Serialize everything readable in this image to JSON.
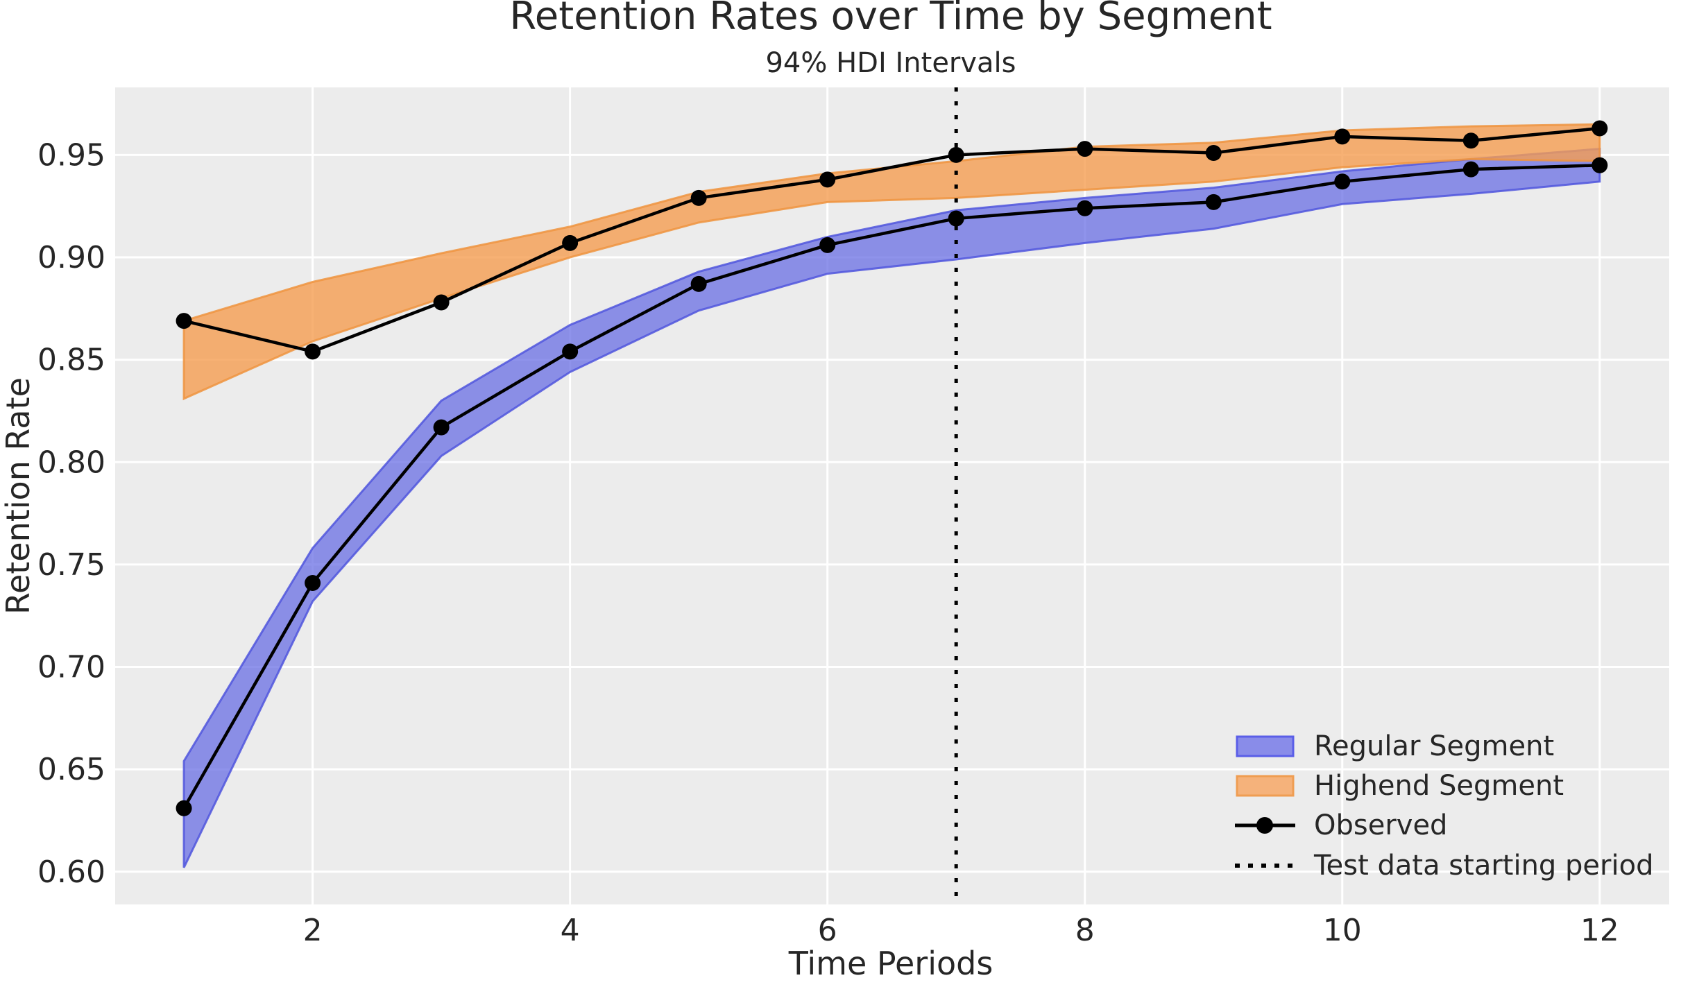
{
  "title": "Retention Rates over Time by Segment",
  "subtitle": "94% HDI Intervals",
  "chart_data": {
    "type": "line",
    "title": "Retention Rates over Time by Segment",
    "subtitle": "94% HDI Intervals",
    "xlabel": "Time Periods",
    "ylabel": "Retention Rate",
    "x": [
      1,
      2,
      3,
      4,
      5,
      6,
      7,
      8,
      9,
      10,
      11,
      12
    ],
    "xlim": [
      0.466,
      12.54
    ],
    "ylim": [
      0.584,
      0.983
    ],
    "grid": true,
    "legend_position": "lower right",
    "xticks": {
      "values": [
        2,
        4,
        6,
        8,
        10,
        12
      ],
      "labels": [
        "2",
        "4",
        "6",
        "8",
        "10",
        "12"
      ]
    },
    "yticks": {
      "values": [
        0.6,
        0.65,
        0.7,
        0.75,
        0.8,
        0.85,
        0.9,
        0.95
      ],
      "labels": [
        "0.60",
        "0.65",
        "0.70",
        "0.75",
        "0.80",
        "0.85",
        "0.90",
        "0.95"
      ]
    },
    "series": [
      {
        "name": "Regular Segment",
        "kind": "hdi_band",
        "lower": [
          0.602,
          0.732,
          0.803,
          0.844,
          0.874,
          0.892,
          0.899,
          0.907,
          0.914,
          0.926,
          0.931,
          0.937
        ],
        "upper": [
          0.654,
          0.758,
          0.83,
          0.867,
          0.893,
          0.91,
          0.923,
          0.929,
          0.934,
          0.942,
          0.948,
          0.953
        ],
        "fill": "#6a6fe4",
        "edge": "#5056dd",
        "fill_opacity": 0.75
      },
      {
        "name": "Highend Segment",
        "kind": "hdi_band",
        "lower": [
          0.831,
          0.859,
          0.88,
          0.9,
          0.917,
          0.927,
          0.929,
          0.933,
          0.937,
          0.944,
          0.948,
          0.947
        ],
        "upper": [
          0.869,
          0.888,
          0.902,
          0.915,
          0.932,
          0.941,
          0.947,
          0.954,
          0.956,
          0.962,
          0.964,
          0.965
        ],
        "fill": "#f59e51",
        "edge": "#ee9440",
        "fill_opacity": 0.8
      },
      {
        "name": "Observed (Regular)",
        "kind": "line_markers",
        "color": "#000000",
        "values": [
          0.631,
          0.741,
          0.817,
          0.854,
          0.887,
          0.906,
          0.919,
          0.924,
          0.927,
          0.937,
          0.943,
          0.945
        ]
      },
      {
        "name": "Observed (Highend)",
        "kind": "line_markers",
        "color": "#000000",
        "values": [
          0.869,
          0.854,
          0.878,
          0.907,
          0.929,
          0.938,
          0.95,
          0.953,
          0.951,
          0.959,
          0.957,
          0.963
        ]
      }
    ],
    "vline": {
      "x": 7,
      "style": "dotted",
      "color": "#000000",
      "label": "Test data starting period"
    },
    "legend": {
      "items": [
        {
          "label": "Regular Segment",
          "swatch": "band-regular"
        },
        {
          "label": "Highend Segment",
          "swatch": "band-highend"
        },
        {
          "label": "Observed",
          "swatch": "line-marker"
        },
        {
          "label": "Test data starting period",
          "swatch": "dotted-line"
        }
      ]
    }
  },
  "colors": {
    "figure_bg": "#ffffff",
    "plot_bg": "#ececec",
    "grid": "#ffffff",
    "text": "#262626",
    "observed": "#000000",
    "legend_regular_fill": "#898ce9",
    "legend_regular_edge": "#5a5ee8",
    "legend_highend_fill": "#f5b27b",
    "legend_highend_edge": "#ef9d52"
  }
}
